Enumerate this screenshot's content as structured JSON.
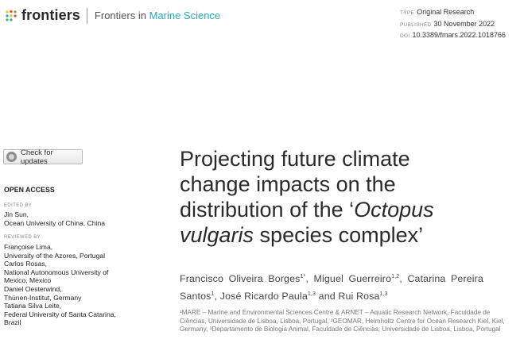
{
  "header": {
    "brand": "frontiers",
    "journal_prefix": "Frontiers in ",
    "journal_accent": "Marine Science",
    "accent_color": "#2aa9b8",
    "meta": [
      {
        "key": "TYPE",
        "value": "Original Research"
      },
      {
        "key": "PUBLISHED",
        "value": "30 November 2022"
      },
      {
        "key": "DOI",
        "value": "10.3389/fmars.2022.1018766"
      }
    ]
  },
  "sidebar": {
    "check_updates": "Check for updates",
    "open_access": "OPEN ACCESS",
    "edited_by_label": "EDITED BY",
    "edited_by": [
      "Jin Sun,",
      "Ocean University of China, China"
    ],
    "reviewed_by_label": "REVIEWED BY",
    "reviewed_by": [
      "Françoise Lima,",
      "University of the Azores, Portugal",
      "Carlos Rosas,",
      "National Autonomous University of",
      "Mexico, Mexico",
      "Daniel Oesterwind,",
      "Thünen-Institut, Germany",
      "Tatiana Silva Leite,",
      "Federal University of Santa Catarina,",
      "Brazil"
    ]
  },
  "article": {
    "title_line1": "Projecting future climate",
    "title_line2": "change impacts on the",
    "title_line3_a": "distribution of the ‘",
    "title_line3_b": "Octopus",
    "title_line4_a": "vulgaris",
    "title_line4_b": " species complex’",
    "authors": [
      {
        "name": "Francisco Oliveira Borges",
        "sup": "1*",
        "sep": ", "
      },
      {
        "name": "Miguel Guerreiro",
        "sup": "1,2",
        "sep": ", "
      },
      {
        "name": "Catarina Pereira Santos",
        "sup": "1",
        "sep": ", "
      },
      {
        "name": "José Ricardo Paula",
        "sup": "1,3",
        "sep": " and "
      },
      {
        "name": "Rui Rosa",
        "sup": "1,3",
        "sep": ""
      }
    ],
    "affiliations": "¹MARE – Marine and Environmental Sciences Centre & ARNET – Aquatic Research Network, Faculdade de Ciências, Universidade de Lisboa, Lisboa, Portugal, ²GEOMAR, Helmholtz Centre for Ocean Research Kiel, Kiel, Germany, ³Departamento de Biologia Animal, Faculdade de Ciências, Universidade de Lisboa, Lisboa, Portugal"
  }
}
